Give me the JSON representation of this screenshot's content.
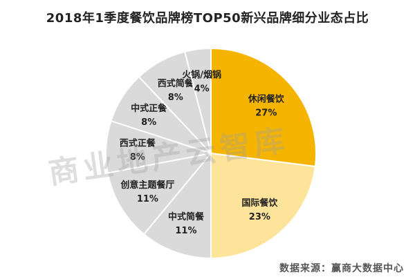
{
  "chart_data": {
    "type": "pie",
    "title": "2018年1季度餐饮品牌榜TOP50新兴品牌细分业态占比",
    "slices": [
      {
        "label": "休闲餐饮",
        "value": 27,
        "display": "27%",
        "color": "#f5b400"
      },
      {
        "label": "国际餐饮",
        "value": 23,
        "display": "23%",
        "color": "#fde49a"
      },
      {
        "label": "中式简餐",
        "value": 11,
        "display": "11%",
        "color": "#dadada"
      },
      {
        "label": "创意主题餐厅",
        "value": 11,
        "display": "11%",
        "color": "#dadada"
      },
      {
        "label": "西式正餐",
        "value": 8,
        "display": "8%",
        "color": "#dadada"
      },
      {
        "label": "中式正餐",
        "value": 8,
        "display": "8%",
        "color": "#dadada"
      },
      {
        "label": "西式简餐",
        "value": 8,
        "display": "8%",
        "color": "#dadada"
      },
      {
        "label": "火锅/烟锅",
        "value": 4,
        "display": "4%",
        "color": "#dadada"
      }
    ]
  },
  "watermark": "商业地产云智库",
  "source": "数据来源：赢商大数据中心"
}
